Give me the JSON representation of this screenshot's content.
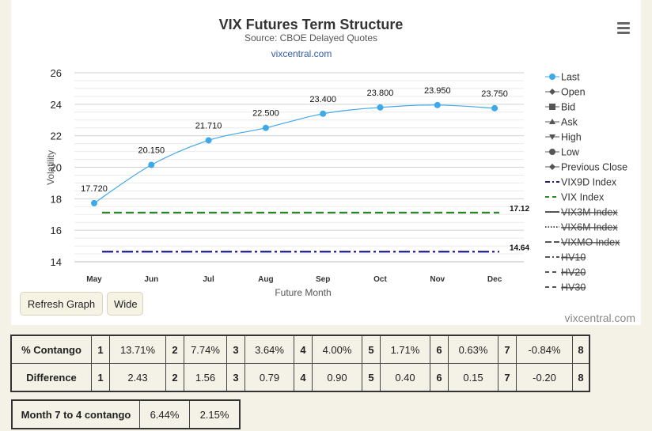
{
  "chart_data": {
    "type": "line",
    "title": "VIX Futures Term Structure",
    "subtitle": "Source: CBOE Delayed Quotes",
    "link": "vixcentral.com",
    "credit": "vixcentral.com",
    "xlabel": "Future Month",
    "ylabel": "Volatility",
    "ylim": [
      14,
      26
    ],
    "yticks": [
      14,
      16,
      18,
      20,
      22,
      24,
      26
    ],
    "grid": true,
    "legend_position": "right",
    "categories": [
      "May",
      "Jun",
      "Jul",
      "Aug",
      "Sep",
      "Oct",
      "Nov",
      "Dec"
    ],
    "series": [
      {
        "name": "Last",
        "values": [
          17.72,
          20.15,
          21.71,
          22.5,
          23.4,
          23.8,
          23.95,
          23.75
        ],
        "labels": [
          "17.720",
          "20.150",
          "21.710",
          "22.500",
          "23.400",
          "23.800",
          "23.950",
          "23.750"
        ],
        "color": "#3ea9e8"
      },
      {
        "name": "VIX9D Index",
        "value": 14.64,
        "label": "14.64",
        "color": "#1c1c8c"
      },
      {
        "name": "VIX Index",
        "value": 17.12,
        "label": "17.12",
        "color": "#2a8a2a"
      }
    ],
    "legend": [
      {
        "label": "Last",
        "icon": "circle",
        "active": true
      },
      {
        "label": "Open",
        "icon": "diamond",
        "active": true
      },
      {
        "label": "Bid",
        "icon": "square",
        "active": true
      },
      {
        "label": "Ask",
        "icon": "triangle",
        "active": true
      },
      {
        "label": "High",
        "icon": "triangle-down",
        "active": true
      },
      {
        "label": "Low",
        "icon": "circle",
        "active": true
      },
      {
        "label": "Previous Close",
        "icon": "diamond",
        "active": true
      },
      {
        "label": "VIX9D Index",
        "icon": "line-dashdot",
        "color": "#1c1c8c",
        "active": true
      },
      {
        "label": "VIX Index",
        "icon": "line-dash",
        "color": "#2a8a2a",
        "active": true
      },
      {
        "label": "VIX3M Index",
        "icon": "line",
        "active": false
      },
      {
        "label": "VIX6M Index",
        "icon": "line-dotted",
        "active": false
      },
      {
        "label": "VIXMO Index",
        "icon": "line-longdash",
        "active": false
      },
      {
        "label": "HV10",
        "icon": "line-dashdot",
        "active": false
      },
      {
        "label": "HV20",
        "icon": "line-dash",
        "active": false
      },
      {
        "label": "HV30",
        "icon": "line-dash",
        "active": false
      }
    ]
  },
  "buttons": {
    "refresh": "Refresh Graph",
    "wide": "Wide"
  },
  "tables": {
    "contango": {
      "label": "% Contango",
      "cells": [
        {
          "n": "1",
          "v": "13.71%"
        },
        {
          "n": "2",
          "v": "7.74%"
        },
        {
          "n": "3",
          "v": "3.64%"
        },
        {
          "n": "4",
          "v": "4.00%"
        },
        {
          "n": "5",
          "v": "1.71%"
        },
        {
          "n": "6",
          "v": "0.63%"
        },
        {
          "n": "7",
          "v": "-0.84%"
        }
      ],
      "last": "8"
    },
    "difference": {
      "label": "Difference",
      "cells": [
        {
          "n": "1",
          "v": "2.43"
        },
        {
          "n": "2",
          "v": "1.56"
        },
        {
          "n": "3",
          "v": "0.79"
        },
        {
          "n": "4",
          "v": "0.90"
        },
        {
          "n": "5",
          "v": "0.40"
        },
        {
          "n": "6",
          "v": "0.15"
        },
        {
          "n": "7",
          "v": "-0.20"
        }
      ],
      "last": "8"
    },
    "month": {
      "label": "Month 7 to 4 contango",
      "v1": "6.44%",
      "v2": "2.15%"
    }
  }
}
